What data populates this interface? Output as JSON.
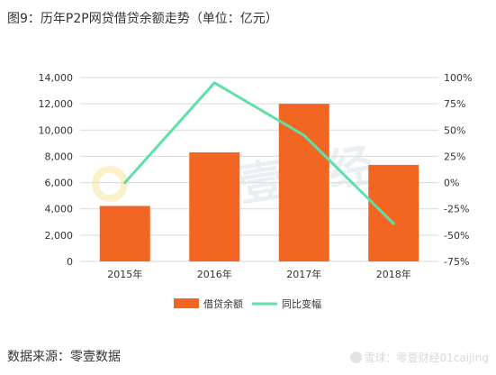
{
  "title": "图9：历年P2P网贷借贷余额走势（单位：亿元）",
  "source": "数据来源：零壹数据",
  "watermark_text": "零壹财经",
  "attribution": "雪球：零壹财经01caijing",
  "chart_data": {
    "type": "bar",
    "categories": [
      "2015年",
      "2016年",
      "2017年",
      "2018年"
    ],
    "series": [
      {
        "name": "借贷余额",
        "type": "bar",
        "axis": "left",
        "color": "#f26522",
        "values": [
          4220,
          8300,
          12000,
          7350
        ]
      },
      {
        "name": "同比变幅",
        "type": "line",
        "axis": "right",
        "color": "#5fe0a8",
        "values": [
          0.0,
          0.95,
          0.45,
          -0.39
        ]
      }
    ],
    "y_left": {
      "min": 0,
      "max": 14000,
      "ticks": [
        "0",
        "2,000",
        "4,000",
        "6,000",
        "8,000",
        "10,000",
        "12,000",
        "14,000"
      ],
      "tick_values": [
        0,
        2000,
        4000,
        6000,
        8000,
        10000,
        12000,
        14000
      ]
    },
    "y_right": {
      "min": -0.75,
      "max": 1.0,
      "ticks": [
        "-75%",
        "-50%",
        "-25%",
        "0%",
        "25%",
        "50%",
        "75%",
        "100%"
      ],
      "tick_values": [
        -0.75,
        -0.5,
        -0.25,
        0,
        0.25,
        0.5,
        0.75,
        1.0
      ]
    },
    "grid": "horizontal",
    "legend_position": "bottom"
  }
}
